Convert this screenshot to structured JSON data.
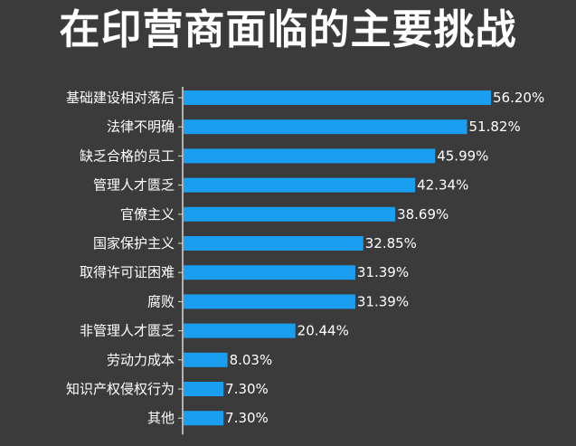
{
  "chart_data": {
    "type": "bar",
    "orientation": "horizontal",
    "title": "在印营商面临的主要挑战",
    "categories": [
      "基础建设相对落后",
      "法律不明确",
      "缺乏合格的员工",
      "管理人才匮乏",
      "官僚主义",
      "国家保护主义",
      "取得许可证困难",
      "腐败",
      "非管理人才匮乏",
      "劳动力成本",
      "知识产权侵权行为",
      "其他"
    ],
    "values": [
      56.2,
      51.82,
      45.99,
      42.34,
      38.69,
      32.85,
      31.39,
      31.39,
      20.44,
      8.03,
      7.3,
      7.3
    ],
    "value_labels": [
      "56.20%",
      "51.82%",
      "45.99%",
      "42.34%",
      "38.69%",
      "32.85%",
      "31.39%",
      "31.39%",
      "20.44%",
      "8.03%",
      "7.30%",
      "7.30%"
    ],
    "unit": "%",
    "xlim": [
      0,
      56.2
    ],
    "grid": false,
    "colors": {
      "background": "#3b3b3b",
      "bar": "#1a9ff0",
      "axis": "#d9d9d9",
      "text": "#ffffff"
    }
  }
}
